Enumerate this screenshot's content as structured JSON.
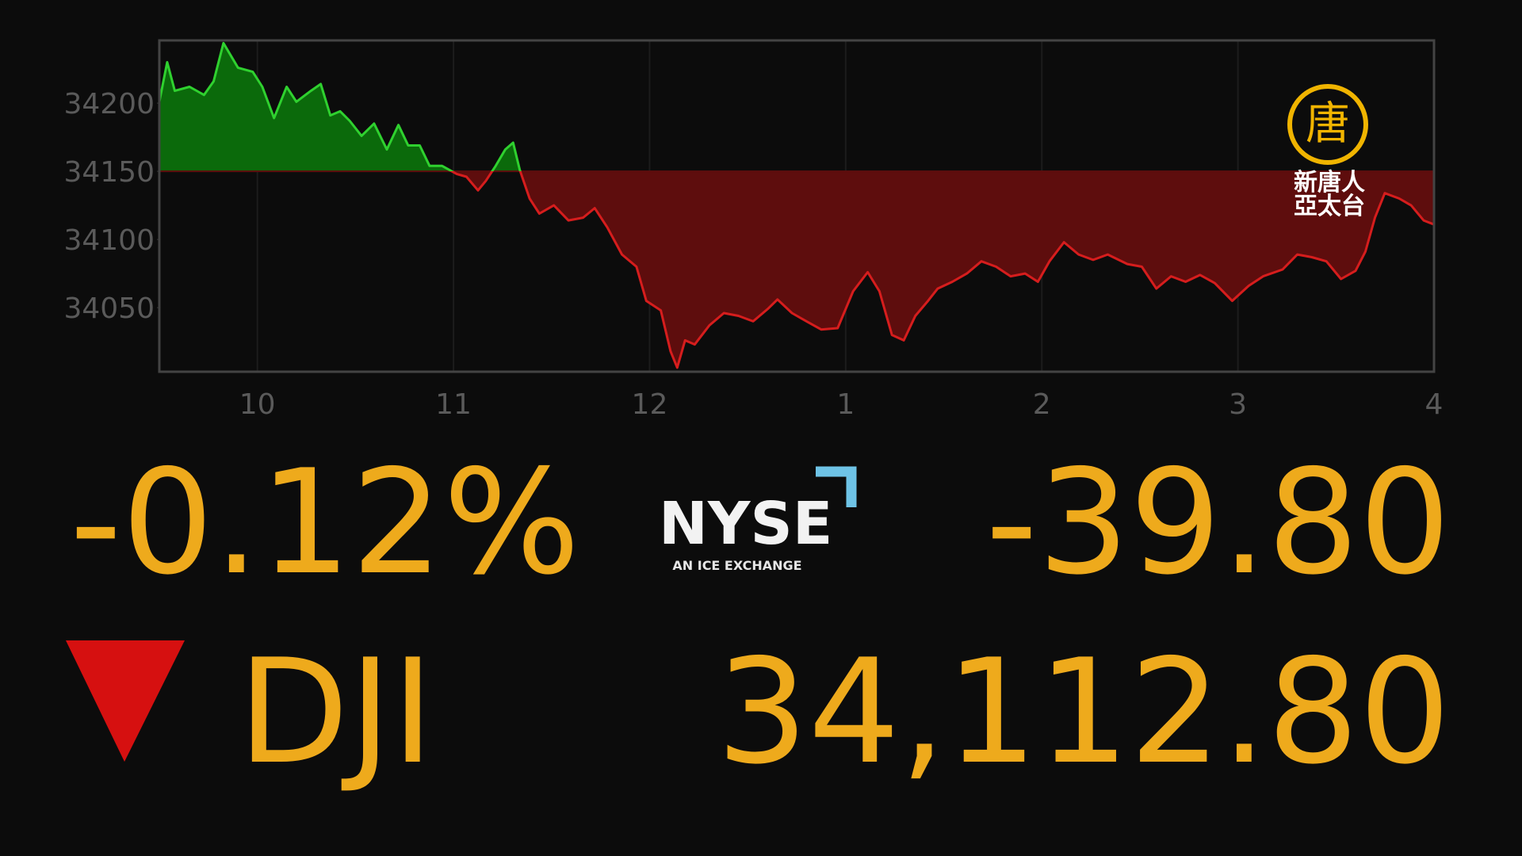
{
  "chart_data": {
    "type": "line",
    "x": [
      9.5,
      9.54,
      9.579,
      9.654,
      9.728,
      9.777,
      9.827,
      9.901,
      9.976,
      10.025,
      10.085,
      10.149,
      10.199,
      10.273,
      10.323,
      10.372,
      10.422,
      10.471,
      10.531,
      10.595,
      10.66,
      10.719,
      10.769,
      10.828,
      10.878,
      10.942,
      11.017,
      11.066,
      11.125,
      11.165,
      11.215,
      11.264,
      11.304,
      11.338,
      11.388,
      11.438,
      11.512,
      11.586,
      11.661,
      11.72,
      11.784,
      11.859,
      11.933,
      11.983,
      12.057,
      12.107,
      12.141,
      12.181,
      12.23,
      12.305,
      12.379,
      12.453,
      12.528,
      12.602,
      12.652,
      12.726,
      12.8,
      12.875,
      12.959,
      13.038,
      13.112,
      13.172,
      13.236,
      13.296,
      13.355,
      13.42,
      13.469,
      13.544,
      13.618,
      13.692,
      13.767,
      13.841,
      13.915,
      13.98,
      14.039,
      14.113,
      14.188,
      14.262,
      14.336,
      14.436,
      14.51,
      14.584,
      14.659,
      14.733,
      14.807,
      14.882,
      14.971,
      15.055,
      15.129,
      15.228,
      15.303,
      15.377,
      15.451,
      15.526,
      15.6,
      15.65,
      15.699,
      15.749,
      15.823,
      15.883,
      15.947,
      16.0
    ],
    "values": [
      34201,
      34230,
      34209,
      34212,
      34206,
      34216,
      34244,
      34226,
      34223,
      34212,
      34189,
      34212,
      34201,
      34209,
      34214,
      34191,
      34194,
      34187,
      34176,
      34185,
      34166,
      34184,
      34169,
      34169,
      34154,
      34154,
      34148,
      34146,
      34136,
      34143,
      34154,
      34166,
      34171,
      34151,
      34130,
      34119,
      34125,
      34114,
      34116,
      34123,
      34109,
      34089,
      34080,
      34055,
      34048,
      34018,
      34006,
      34026,
      34023,
      34037,
      34046,
      34044,
      34040,
      34049,
      34056,
      34046,
      34040,
      34034,
      34035,
      34062,
      34076,
      34062,
      34030,
      34026,
      34044,
      34055,
      34064,
      34069,
      34075,
      34084,
      34080,
      34073,
      34075,
      34069,
      34084,
      34098,
      34089,
      34085,
      34089,
      34082,
      34080,
      34064,
      34073,
      34069,
      34074,
      34068,
      34055,
      34066,
      34073,
      34078,
      34089,
      34087,
      34084,
      34071,
      34077,
      34091,
      34116,
      34134,
      34130,
      34125,
      34114,
      34111
    ],
    "baseline": 34150,
    "above_color": "#2fd12f",
    "below_color": "#d61d1d",
    "above_fill": "#0b6a0b",
    "below_fill": "#5e0d0d",
    "xlim": [
      9.5,
      16
    ],
    "ylim": [
      34003,
      34246
    ],
    "xticks": [
      {
        "value": 10,
        "label": "10"
      },
      {
        "value": 11,
        "label": "11"
      },
      {
        "value": 12,
        "label": "12"
      },
      {
        "value": 13,
        "label": "1"
      },
      {
        "value": 14,
        "label": "2"
      },
      {
        "value": 15,
        "label": "3"
      },
      {
        "value": 16,
        "label": "4"
      }
    ],
    "yticks": [
      34050,
      34100,
      34150,
      34200
    ],
    "grid": "x"
  },
  "ticker": {
    "percent_change": "-0.12%",
    "point_change": "-39.80",
    "symbol": "DJI",
    "price": "34,112.80"
  },
  "exchange": {
    "name": "NYSE",
    "tagline": "AN ICE EXCHANGE"
  },
  "watermark": {
    "emblem": "唐",
    "line1": "新唐人",
    "line2": "亞太台"
  }
}
